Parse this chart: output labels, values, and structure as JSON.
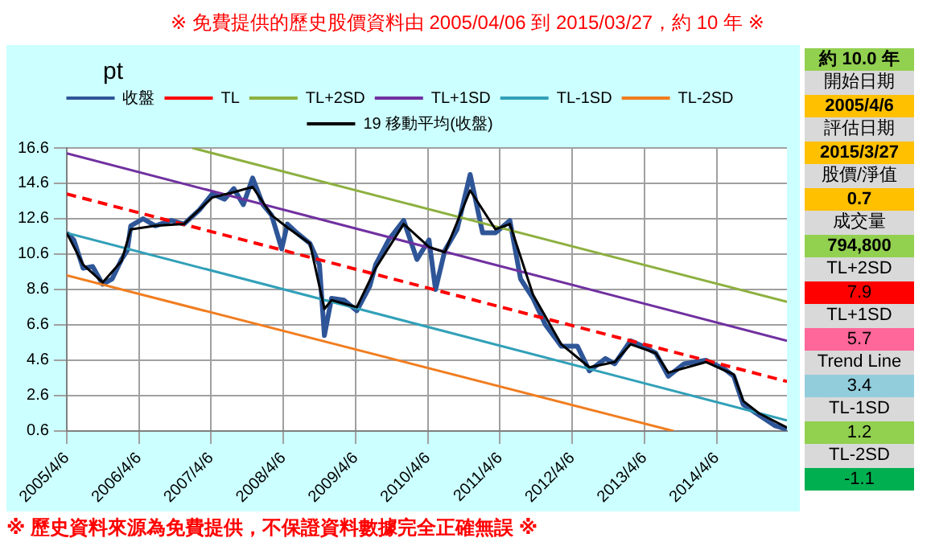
{
  "chart_data": {
    "type": "line",
    "title": "※ 免費提供的歷史股價資料由 2005/04/06 到 2015/03/27，約 10 年 ※",
    "ylabel": "pt",
    "xlim": [
      "2005-04-06",
      "2015-03-27"
    ],
    "xticks": [
      {
        "value": "2005-04-06",
        "label": "2005/4/6"
      },
      {
        "value": "2006-04-06",
        "label": "2006/4/6"
      },
      {
        "value": "2007-04-06",
        "label": "2007/4/6"
      },
      {
        "value": "2008-04-06",
        "label": "2008/4/6"
      },
      {
        "value": "2009-04-06",
        "label": "2009/4/6"
      },
      {
        "value": "2010-04-06",
        "label": "2010/4/6"
      },
      {
        "value": "2011-04-06",
        "label": "2011/4/6"
      },
      {
        "value": "2012-04-06",
        "label": "2012/4/6"
      },
      {
        "value": "2013-04-06",
        "label": "2013/4/6"
      },
      {
        "value": "2014-04-06",
        "label": "2014/4/6"
      }
    ],
    "ylim": [
      0.6,
      16.6
    ],
    "yticks": [
      0.6,
      2.6,
      4.6,
      6.6,
      8.6,
      10.6,
      12.6,
      14.6,
      16.6
    ],
    "grid": true,
    "legend": "top",
    "marker": "none",
    "series": [
      {
        "name": "收盤",
        "color": "#2e5597",
        "x": [
          "2005-04-06",
          "2005-05-12",
          "2005-06-28",
          "2005-08-15",
          "2005-10-05",
          "2005-11-22",
          "2006-01-08",
          "2006-02-06",
          "2006-02-24",
          "2006-04-27",
          "2006-06-28",
          "2006-09-16",
          "2006-11-20",
          "2007-02-06",
          "2007-04-12",
          "2007-06-13",
          "2007-07-30",
          "2007-09-16",
          "2007-11-02",
          "2007-12-24",
          "2008-02-06",
          "2008-03-28",
          "2008-04-26",
          "2008-06-13",
          "2008-08-18",
          "2008-10-05",
          "2008-10-30",
          "2008-12-05",
          "2009-02-06",
          "2009-04-12",
          "2009-06-17",
          "2009-07-16",
          "2009-09-20",
          "2009-12-05",
          "2010-02-10",
          "2010-04-12",
          "2010-05-15",
          "2010-07-01",
          "2010-09-01",
          "2010-11-06",
          "2011-01-08",
          "2011-03-14",
          "2011-05-26",
          "2011-07-19",
          "2011-09-20",
          "2011-11-22",
          "2012-02-10",
          "2012-05-01",
          "2012-07-01",
          "2012-09-20",
          "2012-11-06",
          "2013-01-25",
          "2013-03-28",
          "2013-06-02",
          "2013-08-04",
          "2013-10-23",
          "2014-02-10",
          "2014-05-15",
          "2014-07-01",
          "2014-08-18",
          "2014-11-06",
          "2015-01-25",
          "2015-03-27"
        ],
        "values": [
          11.8,
          11.4,
          9.8,
          9.9,
          8.9,
          9.2,
          10.3,
          10.8,
          12.2,
          12.6,
          12.2,
          12.5,
          12.3,
          13.1,
          14.0,
          13.7,
          14.3,
          13.4,
          14.9,
          13.4,
          12.8,
          10.9,
          12.3,
          11.8,
          11.2,
          10.0,
          6.0,
          8.1,
          8.0,
          7.4,
          8.8,
          10.0,
          11.4,
          12.5,
          10.3,
          11.4,
          8.6,
          10.8,
          12.0,
          15.1,
          11.8,
          11.8,
          12.5,
          9.2,
          8.1,
          6.6,
          5.4,
          5.4,
          4.0,
          4.7,
          4.4,
          5.7,
          5.4,
          5.0,
          3.7,
          4.4,
          4.6,
          4.1,
          3.7,
          2.1,
          1.5,
          0.9,
          0.7
        ]
      },
      {
        "name": "TL",
        "color": "#ff0000",
        "line_style": "dashed",
        "x": [
          "2005-04-06",
          "2015-03-27"
        ],
        "values": [
          14.0,
          3.4
        ]
      },
      {
        "name": "TL+2SD",
        "color": "#8db040",
        "x": [
          "2007-01-01",
          "2015-03-27"
        ],
        "values": [
          16.6,
          7.9
        ]
      },
      {
        "name": "TL+1SD",
        "color": "#7030a0",
        "x": [
          "2005-04-06",
          "2015-03-27"
        ],
        "values": [
          16.3,
          5.7
        ]
      },
      {
        "name": "TL-1SD",
        "color": "#31a0b8",
        "x": [
          "2005-04-06",
          "2015-03-27"
        ],
        "values": [
          11.8,
          1.2
        ]
      },
      {
        "name": "TL-2SD",
        "color": "#f07d20",
        "x": [
          "2005-04-06",
          "2013-08-30"
        ],
        "values": [
          9.4,
          0.6
        ]
      },
      {
        "name": "19 移動平均(收盤)",
        "color": "#000000",
        "x": [
          "2005-04-06",
          "2005-06-28",
          "2005-10-05",
          "2006-01-08",
          "2006-02-24",
          "2006-06-28",
          "2006-11-20",
          "2007-04-12",
          "2007-07-30",
          "2007-11-02",
          "2008-02-06",
          "2008-04-26",
          "2008-08-18",
          "2008-10-30",
          "2008-12-05",
          "2009-04-12",
          "2009-07-16",
          "2009-12-05",
          "2010-04-12",
          "2010-07-01",
          "2010-11-06",
          "2011-03-14",
          "2011-05-26",
          "2011-09-20",
          "2012-02-10",
          "2012-07-01",
          "2012-11-06",
          "2013-01-25",
          "2013-06-02",
          "2013-08-04",
          "2014-02-10",
          "2014-07-01",
          "2014-08-18",
          "2014-11-06",
          "2015-03-27"
        ],
        "values": [
          11.8,
          10.0,
          9.0,
          10.2,
          12.0,
          12.2,
          12.3,
          13.8,
          14.1,
          14.4,
          12.8,
          12.1,
          11.2,
          7.5,
          8.0,
          7.6,
          9.8,
          12.3,
          11.0,
          10.7,
          14.2,
          12.0,
          12.3,
          8.3,
          5.5,
          4.2,
          4.5,
          5.5,
          5.0,
          3.9,
          4.5,
          3.8,
          2.3,
          1.6,
          0.8
        ]
      }
    ],
    "annotations": [
      "※ 歷史資料來源為免費提供，不保證資料數據完全正確無誤 ※",
      "約 10.0 年",
      "開始日期",
      "2005/4/6",
      "評估日期",
      "2015/3/27",
      "股價/淨值",
      "0.7",
      "成交量",
      "794,800",
      "TL+2SD",
      "7.9",
      "TL+1SD",
      "5.7",
      "Trend Line",
      "3.4",
      "TL-1SD",
      "1.2",
      "TL-2SD",
      "-1.1"
    ]
  }
}
